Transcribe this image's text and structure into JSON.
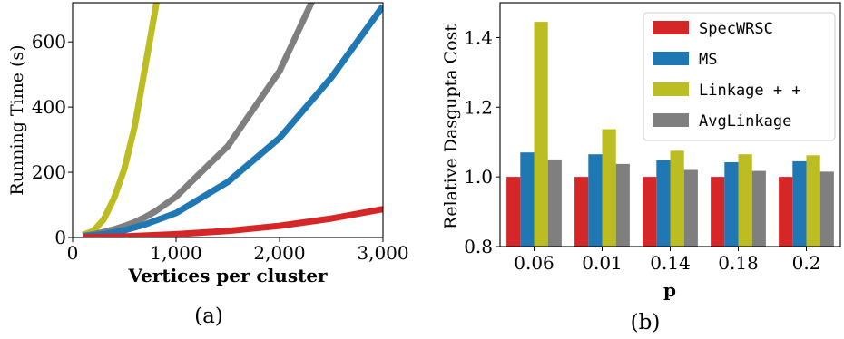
{
  "colors": {
    "red": "#d62728",
    "blue": "#1f77b4",
    "olive": "#bcbd22",
    "gray": "#7f7f7f"
  },
  "chart_data": [
    {
      "type": "line",
      "caption": "(a)",
      "xlabel": "Vertices per cluster",
      "ylabel": "Running Time (s)",
      "xlim": [
        0,
        3000
      ],
      "ylim": [
        0,
        720
      ],
      "xticks": [
        0,
        1000,
        2000,
        3000
      ],
      "xtick_labels": [
        "0",
        "1,000",
        "2,000",
        "3,000"
      ],
      "yticks": [
        0,
        200,
        400,
        600
      ],
      "ytick_labels": [
        "0",
        "200",
        "400",
        "600"
      ],
      "grid": false,
      "legend": null,
      "series": [
        {
          "color": "olive",
          "x": [
            100,
            200,
            300,
            400,
            500,
            600,
            700,
            800,
            850
          ],
          "y": [
            8,
            20,
            55,
            120,
            210,
            340,
            520,
            700,
            800
          ]
        },
        {
          "color": "gray",
          "x": [
            100,
            200,
            300,
            400,
            500,
            600,
            700,
            800,
            1000,
            1500,
            2000,
            2500
          ],
          "y": [
            5,
            10,
            17,
            25,
            35,
            47,
            62,
            80,
            125,
            280,
            510,
            850
          ]
        },
        {
          "color": "blue",
          "x": [
            100,
            300,
            500,
            700,
            1000,
            1500,
            2000,
            2500,
            3000
          ],
          "y": [
            4,
            10,
            22,
            40,
            75,
            170,
            305,
            490,
            710
          ]
        },
        {
          "color": "red",
          "x": [
            100,
            500,
            1000,
            1500,
            2000,
            2500,
            3000
          ],
          "y": [
            1,
            3,
            10,
            20,
            36,
            58,
            87
          ]
        }
      ]
    },
    {
      "type": "bar",
      "caption": "(b)",
      "xlabel": "p",
      "ylabel": "Relative Dasgupta Cost",
      "categories": [
        "0.06",
        "0.01",
        "0.14",
        "0.18",
        "0.2"
      ],
      "ylim": [
        0.8,
        1.5
      ],
      "yticks": [
        0.8,
        1.0,
        1.2,
        1.4
      ],
      "ytick_labels": [
        "0.8",
        "1.0",
        "1.2",
        "1.4"
      ],
      "grid": false,
      "legend_position": "top-right",
      "series": [
        {
          "name": "SpecWRSC",
          "color": "red",
          "values": [
            1.0,
            1.0,
            1.0,
            1.0,
            1.0
          ]
        },
        {
          "name": "MS",
          "color": "blue",
          "values": [
            1.07,
            1.065,
            1.048,
            1.042,
            1.045
          ]
        },
        {
          "name": "Linkage + +",
          "color": "olive",
          "values": [
            1.445,
            1.137,
            1.075,
            1.065,
            1.062
          ]
        },
        {
          "name": "AvgLinkage",
          "color": "gray",
          "values": [
            1.05,
            1.037,
            1.02,
            1.017,
            1.015
          ]
        }
      ]
    }
  ]
}
